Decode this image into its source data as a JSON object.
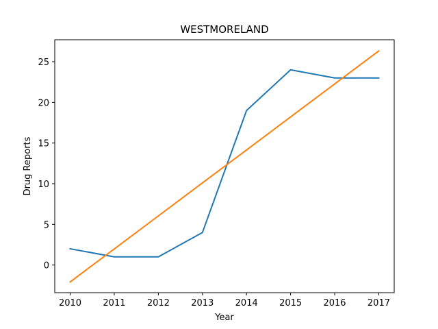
{
  "chart_data": {
    "type": "line",
    "title": "WESTMORELAND",
    "xlabel": "Year",
    "ylabel": "Drug Reports",
    "x": [
      2010,
      2011,
      2012,
      2013,
      2014,
      2015,
      2016,
      2017
    ],
    "xlim": [
      2009.65,
      2017.35
    ],
    "ylim": [
      -3.4,
      27.7
    ],
    "xticks": [
      2010,
      2011,
      2012,
      2013,
      2014,
      2015,
      2016,
      2017
    ],
    "yticks": [
      0,
      5,
      10,
      15,
      20,
      25
    ],
    "grid": false,
    "series": [
      {
        "values": [
          2,
          1,
          1,
          4,
          19,
          24,
          23,
          23
        ],
        "color": "#1f77b4"
      },
      {
        "values": [
          -2.08,
          1.98,
          6.04,
          10.1,
          14.15,
          18.21,
          22.27,
          26.33
        ],
        "color": "#ff7f0e"
      }
    ]
  }
}
